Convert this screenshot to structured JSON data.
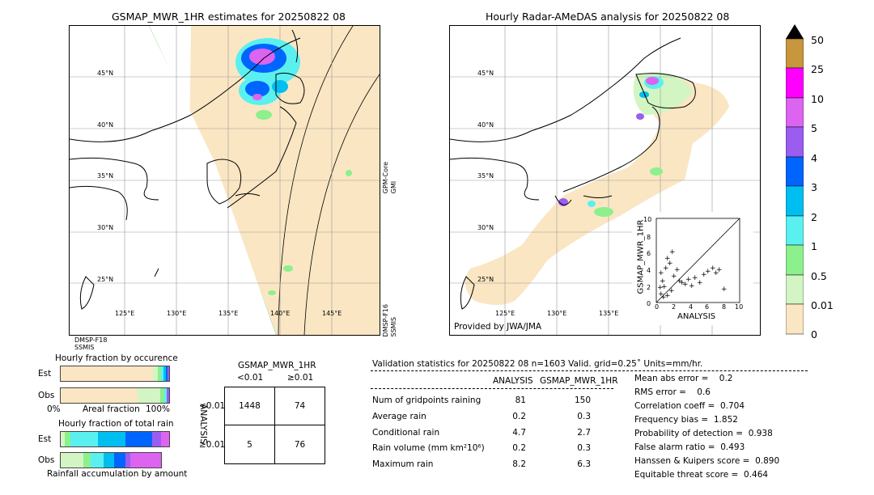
{
  "left_map": {
    "title": "GSMAP_MWR_1HR estimates for 20250822 08",
    "lat_labels": [
      "45°N",
      "40°N",
      "35°N",
      "30°N",
      "25°N"
    ],
    "lon_labels": [
      "125°E",
      "130°E",
      "135°E",
      "140°E",
      "145°E"
    ],
    "sat_right_top": "GPM-Core\nGMI",
    "sat_right_bottom": "DMSP-F16\nSSMIS",
    "sat_bottom_left": "DMSP-F18\nSSMIS"
  },
  "right_map": {
    "title": "Hourly Radar-AMeDAS analysis for 20250822 08",
    "lat_labels": [
      "45°N",
      "40°N",
      "35°N",
      "30°N",
      "25°N"
    ],
    "lon_labels": [
      "125°E",
      "130°E",
      "135°E"
    ],
    "provider": "Provided by JWA/JMA"
  },
  "scatter": {
    "xlabel": "ANALYSIS",
    "ylabel": "GSMAP_MWR_1HR",
    "ticks": [
      "0",
      "2",
      "4",
      "6",
      "8",
      "10"
    ],
    "top_tick": "10"
  },
  "colorbar": {
    "labels": [
      "50",
      "25",
      "10",
      "5",
      "4",
      "3",
      "2",
      "1",
      "0.5",
      "0.01",
      "0"
    ],
    "colors": [
      "#c8963c",
      "#ff00ff",
      "#dc64f0",
      "#9b5cf0",
      "#0064ff",
      "#00bef0",
      "#5af0f0",
      "#8cf08c",
      "#d2f5c3",
      "#fae6c3"
    ]
  },
  "occurrence": {
    "title": "Hourly fraction by occurence",
    "rows": [
      "Est",
      "Obs"
    ],
    "axis_left": "0%",
    "axis_mid": "Areal fraction",
    "axis_right": "100%"
  },
  "total_rain": {
    "title": "Hourly fraction of total rain",
    "rows": [
      "Est",
      "Obs"
    ],
    "footer": "Rainfall accumulation by amount"
  },
  "contingency": {
    "title": "GSMAP_MWR_1HR",
    "col_headers": [
      "<0.01",
      "≥0.01"
    ],
    "row_axis": "ANALYSIS",
    "row_headers": [
      "<0.01",
      "≥0.01"
    ],
    "cells": [
      "1448",
      "74",
      "5",
      "76"
    ]
  },
  "validation": {
    "header": "Validation statistics for 20250822 08  n=1603 Valid. grid=0.25˚ Units=mm/hr.",
    "col_analysis": "ANALYSIS",
    "col_gsmap": "GSMAP_MWR_1HR",
    "rows": [
      {
        "label": "Num of gridpoints raining",
        "a": "81",
        "g": "150"
      },
      {
        "label": "Average rain",
        "a": "0.2",
        "g": "0.3"
      },
      {
        "label": "Conditional rain",
        "a": "4.7",
        "g": "2.7"
      },
      {
        "label": "Rain volume (mm km²10⁶)",
        "a": "0.2",
        "g": "0.3"
      },
      {
        "label": "Maximum rain",
        "a": "8.2",
        "g": "6.3"
      }
    ],
    "scores": [
      "Mean abs error =    0.2",
      "RMS error =    0.6",
      "Correlation coeff =  0.704",
      "Frequency bias =  1.852",
      "Probability of detection =  0.938",
      "False alarm ratio =  0.493",
      "Hanssen & Kuipers score =  0.890",
      "Equitable threat score =  0.464"
    ]
  }
}
